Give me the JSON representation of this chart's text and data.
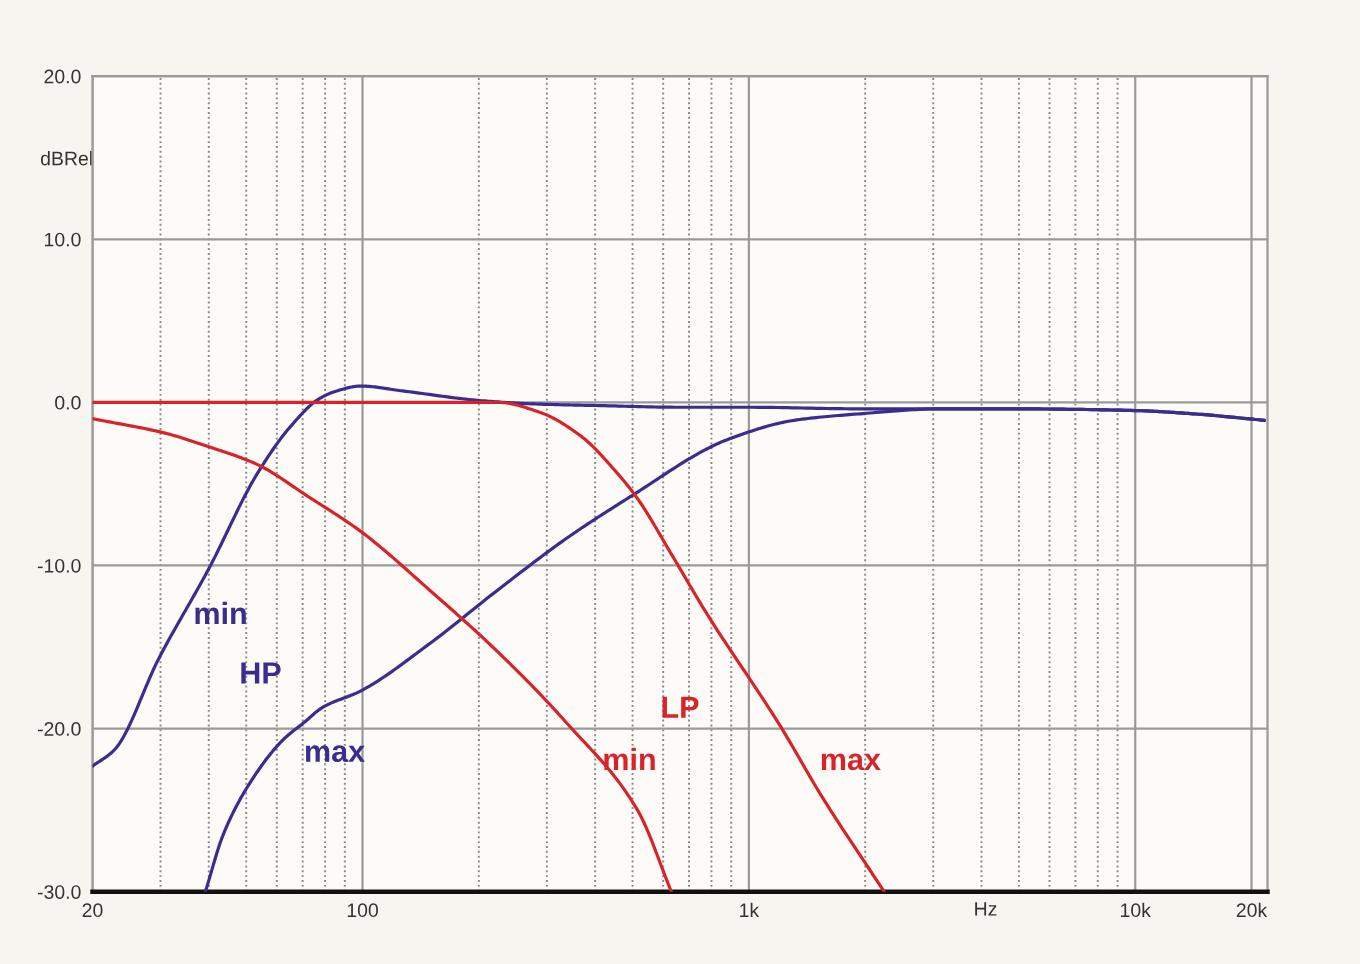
{
  "chart_data": {
    "type": "line",
    "xlabel": "Hz",
    "ylabel": "dBRel",
    "log": "x",
    "grid": true,
    "xlim": [
      20,
      22000
    ],
    "xticks": [
      20,
      100,
      {
        "value": 1000,
        "label": "1k"
      },
      {
        "value": 10000,
        "label": "10k"
      },
      {
        "value": 20000,
        "label": "20k"
      }
    ],
    "ylim": [
      -30,
      20
    ],
    "yticks": [
      {
        "value": -30,
        "label": "-30.0"
      },
      {
        "value": -20,
        "label": "-20.0"
      },
      {
        "value": -10,
        "label": "-10.0"
      },
      {
        "value": 0,
        "label": "0.0"
      },
      {
        "value": 10,
        "label": "10.0"
      },
      {
        "value": 20,
        "label": "20.0"
      }
    ],
    "series": [
      {
        "name": "min",
        "color": "#3a2d8e",
        "x": [
          20,
          22.8,
          29.7,
          40,
          53.3,
          65,
          77,
          85.7,
          98.8,
          127,
          204,
          281,
          416,
          668,
          1000,
          2000,
          5000,
          10000,
          14100,
          21600
        ],
        "values": [
          -22.3,
          -21.3,
          -15.7,
          -10.2,
          -4.4,
          -1.5,
          0.2,
          0.7,
          1.0,
          0.7,
          0.1,
          -0.1,
          -0.2,
          -0.3,
          -0.3,
          -0.4,
          -0.4,
          -0.5,
          -0.7,
          -1.1
        ]
      },
      {
        "name": "max",
        "color": "#3a2d8e",
        "x": [
          39.2,
          43.6,
          50.9,
          62.2,
          70.8,
          78.8,
          98.8,
          149,
          224,
          339,
          515,
          772,
          876,
          1310,
          1940,
          3100,
          5000,
          10000,
          14100,
          21600
        ],
        "values": [
          -30,
          -26.5,
          -23.4,
          -20.7,
          -19.6,
          -18.7,
          -17.7,
          -14.8,
          -11.5,
          -8.3,
          -5.5,
          -2.9,
          -2.3,
          -1.1,
          -0.7,
          -0.4,
          -0.4,
          -0.5,
          -0.7,
          -1.1
        ]
      },
      {
        "name": "min",
        "color": "#d9232b",
        "x": [
          20,
          31,
          38.6,
          53.3,
          72.6,
          98.8,
          149,
          224,
          339,
          515,
          630
        ],
        "values": [
          -1.0,
          -1.9,
          -2.6,
          -3.8,
          -5.8,
          -7.9,
          -11.5,
          -15.3,
          -19.7,
          -25.0,
          -30
        ]
      },
      {
        "name": "max",
        "color": "#d9232b",
        "x": [
          20,
          100,
          224,
          287,
          369,
          451,
          515,
          630,
          771,
          1210,
          1530,
          2240
        ],
        "values": [
          0.0,
          0.0,
          0.0,
          -0.6,
          -2.1,
          -4.2,
          -5.9,
          -9.3,
          -12.8,
          -19.9,
          -24.0,
          -30
        ]
      }
    ],
    "annotations": [
      "HP",
      "LP"
    ]
  }
}
